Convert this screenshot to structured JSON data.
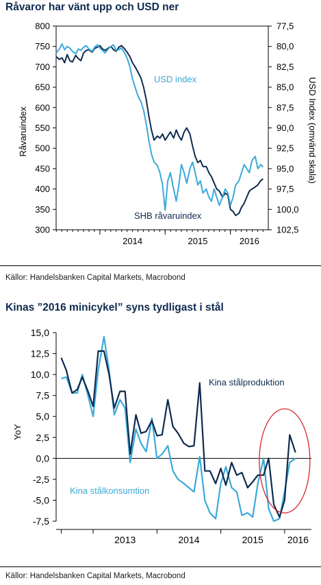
{
  "colors": {
    "dark_navy": "#0e2a4e",
    "light_blue": "#3aa9d9",
    "annotation_red": "#d7262c",
    "axis": "#000000"
  },
  "charts": [
    {
      "title": "Råvaror har vänt upp och USD ner",
      "source": "Källor: Handelsbanken Capital Markets, Macrobond"
    },
    {
      "title": "Kinas ”2016 minicykel” syns tydligast i stål",
      "source": "Källor: Handelsbanken Capital Markets, Macrobond"
    }
  ],
  "chart_data": [
    {
      "type": "line",
      "title": "Råvaror har vänt upp och USD ner",
      "ylabel": "Råvaruindex",
      "ylabel_right": "USD Index (omvänd skala)",
      "ylim": [
        300,
        800
      ],
      "y_ticks": [
        "300",
        "350",
        "400",
        "450",
        "500",
        "550",
        "600",
        "650",
        "700",
        "750",
        "800"
      ],
      "ylim_right": [
        102.5,
        77.5
      ],
      "right_axis_inverted": true,
      "y_ticks_right": [
        "77,5",
        "80,0",
        "82,5",
        "85,0",
        "87,5",
        "90,0",
        "92,5",
        "95,0",
        "97,5",
        "100,0",
        "102,5"
      ],
      "xlim": [
        2013.33,
        2016.58
      ],
      "x_tick_labels": [
        "2014",
        "2015",
        "2016"
      ],
      "grid": false,
      "series": [
        {
          "name": "SHB råvaruindex",
          "axis": "left",
          "color": "#0e2a4e",
          "x": [
            2013.33,
            2013.38,
            2013.42,
            2013.46,
            2013.5,
            2013.54,
            2013.58,
            2013.63,
            2013.67,
            2013.71,
            2013.75,
            2013.79,
            2013.83,
            2013.88,
            2013.92,
            2013.96,
            2014.0,
            2014.04,
            2014.08,
            2014.13,
            2014.17,
            2014.21,
            2014.25,
            2014.29,
            2014.33,
            2014.38,
            2014.42,
            2014.46,
            2014.5,
            2014.54,
            2014.58,
            2014.63,
            2014.67,
            2014.71,
            2014.75,
            2014.79,
            2014.83,
            2014.88,
            2014.92,
            2014.96,
            2015.0,
            2015.04,
            2015.08,
            2015.13,
            2015.17,
            2015.21,
            2015.25,
            2015.29,
            2015.33,
            2015.38,
            2015.42,
            2015.46,
            2015.5,
            2015.54,
            2015.58,
            2015.63,
            2015.67,
            2015.71,
            2015.75,
            2015.79,
            2015.83,
            2015.88,
            2015.92,
            2015.96,
            2016.0,
            2016.04,
            2016.08,
            2016.13,
            2016.17,
            2016.21,
            2016.25,
            2016.29,
            2016.33,
            2016.38,
            2016.42,
            2016.46,
            2016.5
          ],
          "values": [
            725,
            718,
            722,
            710,
            730,
            715,
            712,
            728,
            720,
            715,
            734,
            740,
            742,
            736,
            745,
            748,
            752,
            744,
            740,
            746,
            750,
            742,
            738,
            748,
            752,
            744,
            735,
            725,
            710,
            700,
            688,
            672,
            650,
            620,
            580,
            545,
            520,
            530,
            525,
            535,
            520,
            530,
            540,
            525,
            545,
            530,
            520,
            540,
            550,
            535,
            505,
            480,
            465,
            470,
            455,
            455,
            440,
            430,
            415,
            400,
            395,
            380,
            390,
            385,
            350,
            345,
            335,
            340,
            355,
            365,
            380,
            395,
            400,
            405,
            410,
            420,
            425
          ]
        },
        {
          "name": "USD index",
          "axis": "right",
          "color": "#3aa9d9",
          "x": [
            2013.33,
            2013.38,
            2013.42,
            2013.46,
            2013.5,
            2013.54,
            2013.58,
            2013.63,
            2013.67,
            2013.71,
            2013.75,
            2013.79,
            2013.83,
            2013.88,
            2013.92,
            2013.96,
            2014.0,
            2014.04,
            2014.08,
            2014.13,
            2014.17,
            2014.21,
            2014.25,
            2014.29,
            2014.33,
            2014.38,
            2014.42,
            2014.46,
            2014.5,
            2014.54,
            2014.58,
            2014.63,
            2014.67,
            2014.71,
            2014.75,
            2014.79,
            2014.83,
            2014.88,
            2014.92,
            2014.96,
            2015.0,
            2015.04,
            2015.08,
            2015.13,
            2015.17,
            2015.21,
            2015.25,
            2015.29,
            2015.33,
            2015.38,
            2015.42,
            2015.46,
            2015.5,
            2015.54,
            2015.58,
            2015.63,
            2015.67,
            2015.71,
            2015.75,
            2015.79,
            2015.83,
            2015.88,
            2015.92,
            2015.96,
            2016.0,
            2016.04,
            2016.08,
            2016.13,
            2016.17,
            2016.21,
            2016.25,
            2016.29,
            2016.33,
            2016.38,
            2016.42,
            2016.46,
            2016.5
          ],
          "values": [
            80.8,
            80.3,
            79.7,
            80.4,
            80.0,
            80.2,
            80.6,
            80.9,
            80.3,
            80.5,
            80.1,
            79.9,
            80.3,
            80.6,
            80.1,
            79.8,
            80.2,
            80.5,
            80.8,
            80.3,
            80.0,
            79.8,
            80.5,
            80.4,
            80.2,
            80.8,
            81.5,
            82.5,
            84.0,
            85.0,
            86.0,
            86.8,
            87.8,
            89.5,
            91.5,
            93.2,
            94.2,
            94.6,
            95.5,
            97.0,
            100.1,
            96.5,
            95.5,
            97.5,
            99.0,
            97.0,
            94.5,
            95.5,
            96.8,
            95.0,
            94.2,
            95.5,
            97.0,
            96.5,
            98.0,
            97.5,
            98.5,
            99.0,
            97.5,
            98.5,
            99.5,
            98.5,
            97.5,
            98.0,
            99.5,
            98.5,
            97.0,
            96.5,
            95.5,
            94.5,
            95.0,
            95.5,
            94.0,
            93.5,
            95.0,
            94.5,
            94.8
          ]
        }
      ],
      "annotations": [
        "USD index",
        "SHB råvaruindex"
      ]
    },
    {
      "type": "line",
      "title": "Kinas ”2016 minicykel” syns tydligast i stål",
      "ylabel": "YoY",
      "ylim": [
        -7.5,
        15.0
      ],
      "y_ticks": [
        "-7,5",
        "-5,0",
        "-2,5",
        "0,0",
        "2,5",
        "5,0",
        "7,5",
        "10,0",
        "12,5",
        "15,0"
      ],
      "xlim": [
        2012.42,
        2016.42
      ],
      "x_tick_labels": [
        "2013",
        "2014",
        "2015",
        "2016"
      ],
      "grid": false,
      "series": [
        {
          "name": "Kina stålproduktion",
          "color": "#0e2a4e",
          "x": [
            2012.5,
            2012.58,
            2012.67,
            2012.75,
            2012.83,
            2012.92,
            2013.0,
            2013.08,
            2013.17,
            2013.25,
            2013.33,
            2013.42,
            2013.5,
            2013.58,
            2013.67,
            2013.75,
            2013.83,
            2013.92,
            2014.0,
            2014.08,
            2014.17,
            2014.25,
            2014.33,
            2014.42,
            2014.5,
            2014.58,
            2014.67,
            2014.75,
            2014.83,
            2014.92,
            2015.0,
            2015.08,
            2015.17,
            2015.25,
            2015.33,
            2015.42,
            2015.5,
            2015.58,
            2015.67,
            2015.75,
            2015.83,
            2015.92,
            2016.0,
            2016.08,
            2016.17,
            2016.25
          ],
          "values": [
            12.0,
            10.5,
            7.8,
            8.2,
            9.7,
            8.0,
            6.2,
            12.8,
            12.8,
            10.0,
            6.0,
            8.0,
            8.0,
            0.5,
            5.2,
            3.0,
            3.2,
            4.5,
            2.7,
            2.8,
            7.0,
            3.8,
            3.0,
            1.8,
            1.4,
            1.5,
            9.0,
            -1.5,
            -1.5,
            -3.0,
            -1.2,
            -3.2,
            -0.5,
            -2.0,
            -1.7,
            -3.5,
            -2.8,
            -2.0,
            -2.0,
            0.0,
            -5.5,
            -7.0,
            -5.0,
            2.8,
            0.7,
            null
          ]
        },
        {
          "name": "Kina stålkonsumtion",
          "color": "#3aa9d9",
          "x": [
            2012.5,
            2012.58,
            2012.67,
            2012.75,
            2012.83,
            2012.92,
            2013.0,
            2013.08,
            2013.17,
            2013.25,
            2013.33,
            2013.42,
            2013.5,
            2013.58,
            2013.67,
            2013.75,
            2013.83,
            2013.92,
            2014.0,
            2014.08,
            2014.17,
            2014.25,
            2014.33,
            2014.42,
            2014.5,
            2014.58,
            2014.67,
            2014.75,
            2014.83,
            2014.92,
            2015.0,
            2015.08,
            2015.17,
            2015.25,
            2015.33,
            2015.42,
            2015.5,
            2015.58,
            2015.67,
            2015.75,
            2015.83,
            2015.92,
            2016.0,
            2016.08,
            2016.17,
            2016.25
          ],
          "values": [
            9.5,
            9.7,
            7.8,
            7.8,
            10.0,
            7.5,
            5.0,
            10.5,
            14.5,
            10.5,
            5.2,
            7.0,
            6.0,
            -0.5,
            3.5,
            1.8,
            0.8,
            4.8,
            0.0,
            0.5,
            1.5,
            -1.5,
            -2.5,
            -3.0,
            -3.5,
            -4.0,
            0.2,
            -5.0,
            -6.5,
            -7.2,
            -3.0,
            -1.0,
            -3.5,
            -4.0,
            -6.8,
            -6.5,
            -7.0,
            -3.0,
            0.0,
            -6.0,
            -7.5,
            -7.2,
            -4.0,
            -0.5,
            0.0,
            null
          ]
        }
      ],
      "annotations": [
        "Kina stålproduktion",
        "Kina stålkonsumtion"
      ],
      "highlight": {
        "shape": "ellipse",
        "color": "#d7262c",
        "around": "2016"
      }
    }
  ]
}
